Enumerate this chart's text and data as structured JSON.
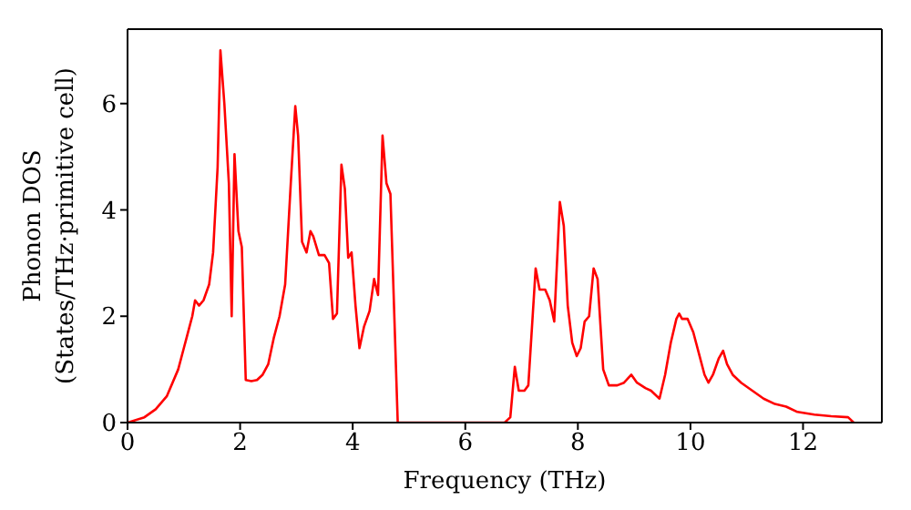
{
  "chart_data": {
    "type": "line",
    "xlabel": "Frequency (THz)",
    "ylabel": "Phonon DOS\n(States/THz·primitive cell)",
    "xlim": [
      0,
      13.4
    ],
    "ylim": [
      0,
      7.4
    ],
    "xticks": [
      0,
      2,
      4,
      6,
      8,
      10,
      12
    ],
    "yticks": [
      0,
      2,
      4,
      6
    ],
    "grid": false,
    "legend": false,
    "marker": "none",
    "line_style": "solid",
    "series": [
      {
        "color": "#ff0000",
        "x": [
          0,
          0.3,
          0.5,
          0.7,
          0.9,
          1.0,
          1.05,
          1.1,
          1.15,
          1.2,
          1.27,
          1.35,
          1.45,
          1.52,
          1.6,
          1.65,
          1.72,
          1.8,
          1.85,
          1.9,
          1.97,
          2.03,
          2.1,
          2.2,
          2.3,
          2.4,
          2.5,
          2.6,
          2.7,
          2.8,
          2.9,
          2.98,
          3.03,
          3.1,
          3.18,
          3.25,
          3.3,
          3.4,
          3.5,
          3.58,
          3.65,
          3.72,
          3.8,
          3.86,
          3.92,
          3.98,
          4.05,
          4.12,
          4.2,
          4.3,
          4.38,
          4.45,
          4.53,
          4.6,
          4.67,
          4.8,
          5.0,
          6.7,
          6.8,
          6.88,
          6.95,
          7.05,
          7.12,
          7.25,
          7.32,
          7.42,
          7.5,
          7.58,
          7.68,
          7.75,
          7.82,
          7.9,
          7.98,
          8.05,
          8.12,
          8.2,
          8.28,
          8.35,
          8.45,
          8.55,
          8.7,
          8.82,
          8.95,
          9.05,
          9.2,
          9.3,
          9.45,
          9.55,
          9.65,
          9.75,
          9.8,
          9.85,
          9.95,
          10.05,
          10.15,
          10.25,
          10.32,
          10.4,
          10.5,
          10.58,
          10.65,
          10.75,
          10.9,
          11.1,
          11.3,
          11.5,
          11.7,
          11.9,
          12.2,
          12.5,
          12.8,
          12.9
        ],
        "values": [
          0,
          0.1,
          0.25,
          0.5,
          1.0,
          1.4,
          1.6,
          1.8,
          2.0,
          2.3,
          2.2,
          2.3,
          2.6,
          3.2,
          4.8,
          7.0,
          6.0,
          4.5,
          2.0,
          5.05,
          3.6,
          3.3,
          0.8,
          0.78,
          0.8,
          0.9,
          1.1,
          1.6,
          2.0,
          2.6,
          4.5,
          5.95,
          5.4,
          3.4,
          3.2,
          3.6,
          3.5,
          3.15,
          3.15,
          3.0,
          1.95,
          2.05,
          4.85,
          4.4,
          3.1,
          3.2,
          2.2,
          1.4,
          1.8,
          2.1,
          2.7,
          2.4,
          5.4,
          4.5,
          4.3,
          0,
          0,
          0,
          0.1,
          1.05,
          0.6,
          0.6,
          0.7,
          2.9,
          2.5,
          2.5,
          2.3,
          1.9,
          4.15,
          3.7,
          2.2,
          1.5,
          1.25,
          1.4,
          1.9,
          2.0,
          2.9,
          2.7,
          1.0,
          0.7,
          0.7,
          0.75,
          0.9,
          0.75,
          0.65,
          0.6,
          0.45,
          0.9,
          1.5,
          1.95,
          2.05,
          1.95,
          1.95,
          1.7,
          1.3,
          0.9,
          0.75,
          0.9,
          1.2,
          1.35,
          1.1,
          0.9,
          0.75,
          0.6,
          0.45,
          0.35,
          0.3,
          0.2,
          0.15,
          0.12,
          0.1,
          0
        ]
      }
    ]
  }
}
